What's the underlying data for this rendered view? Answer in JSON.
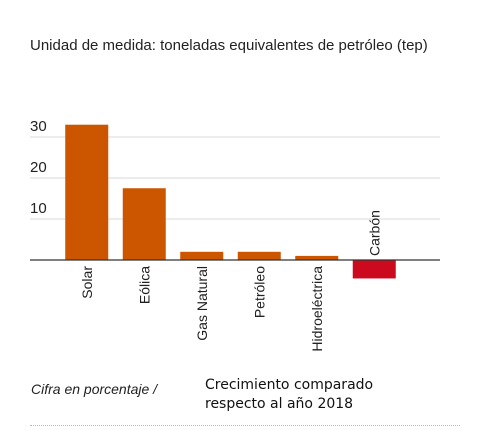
{
  "header": {
    "unit_note": "Unidad de medida: toneladas equivalentes de petróleo (tep)"
  },
  "footer": {
    "left_note": "Cifra en porcentaje /",
    "right_note_line1": "Crecimiento comparado",
    "right_note_line2": "respecto al año 2018"
  },
  "chart_data": {
    "type": "bar",
    "categories": [
      "Solar",
      "Eólica",
      "Gas Natural",
      "Petróleo",
      "Hidroeléctrica",
      "Carbón"
    ],
    "values": [
      33,
      17.5,
      2,
      2,
      1,
      -4.5
    ],
    "colors": [
      "#cc5500",
      "#cc5500",
      "#cc5500",
      "#cc5500",
      "#cc5500",
      "#cc0a1e"
    ],
    "yticks": [
      10,
      20,
      30
    ],
    "ylim": [
      -6,
      35
    ],
    "grid": true
  }
}
